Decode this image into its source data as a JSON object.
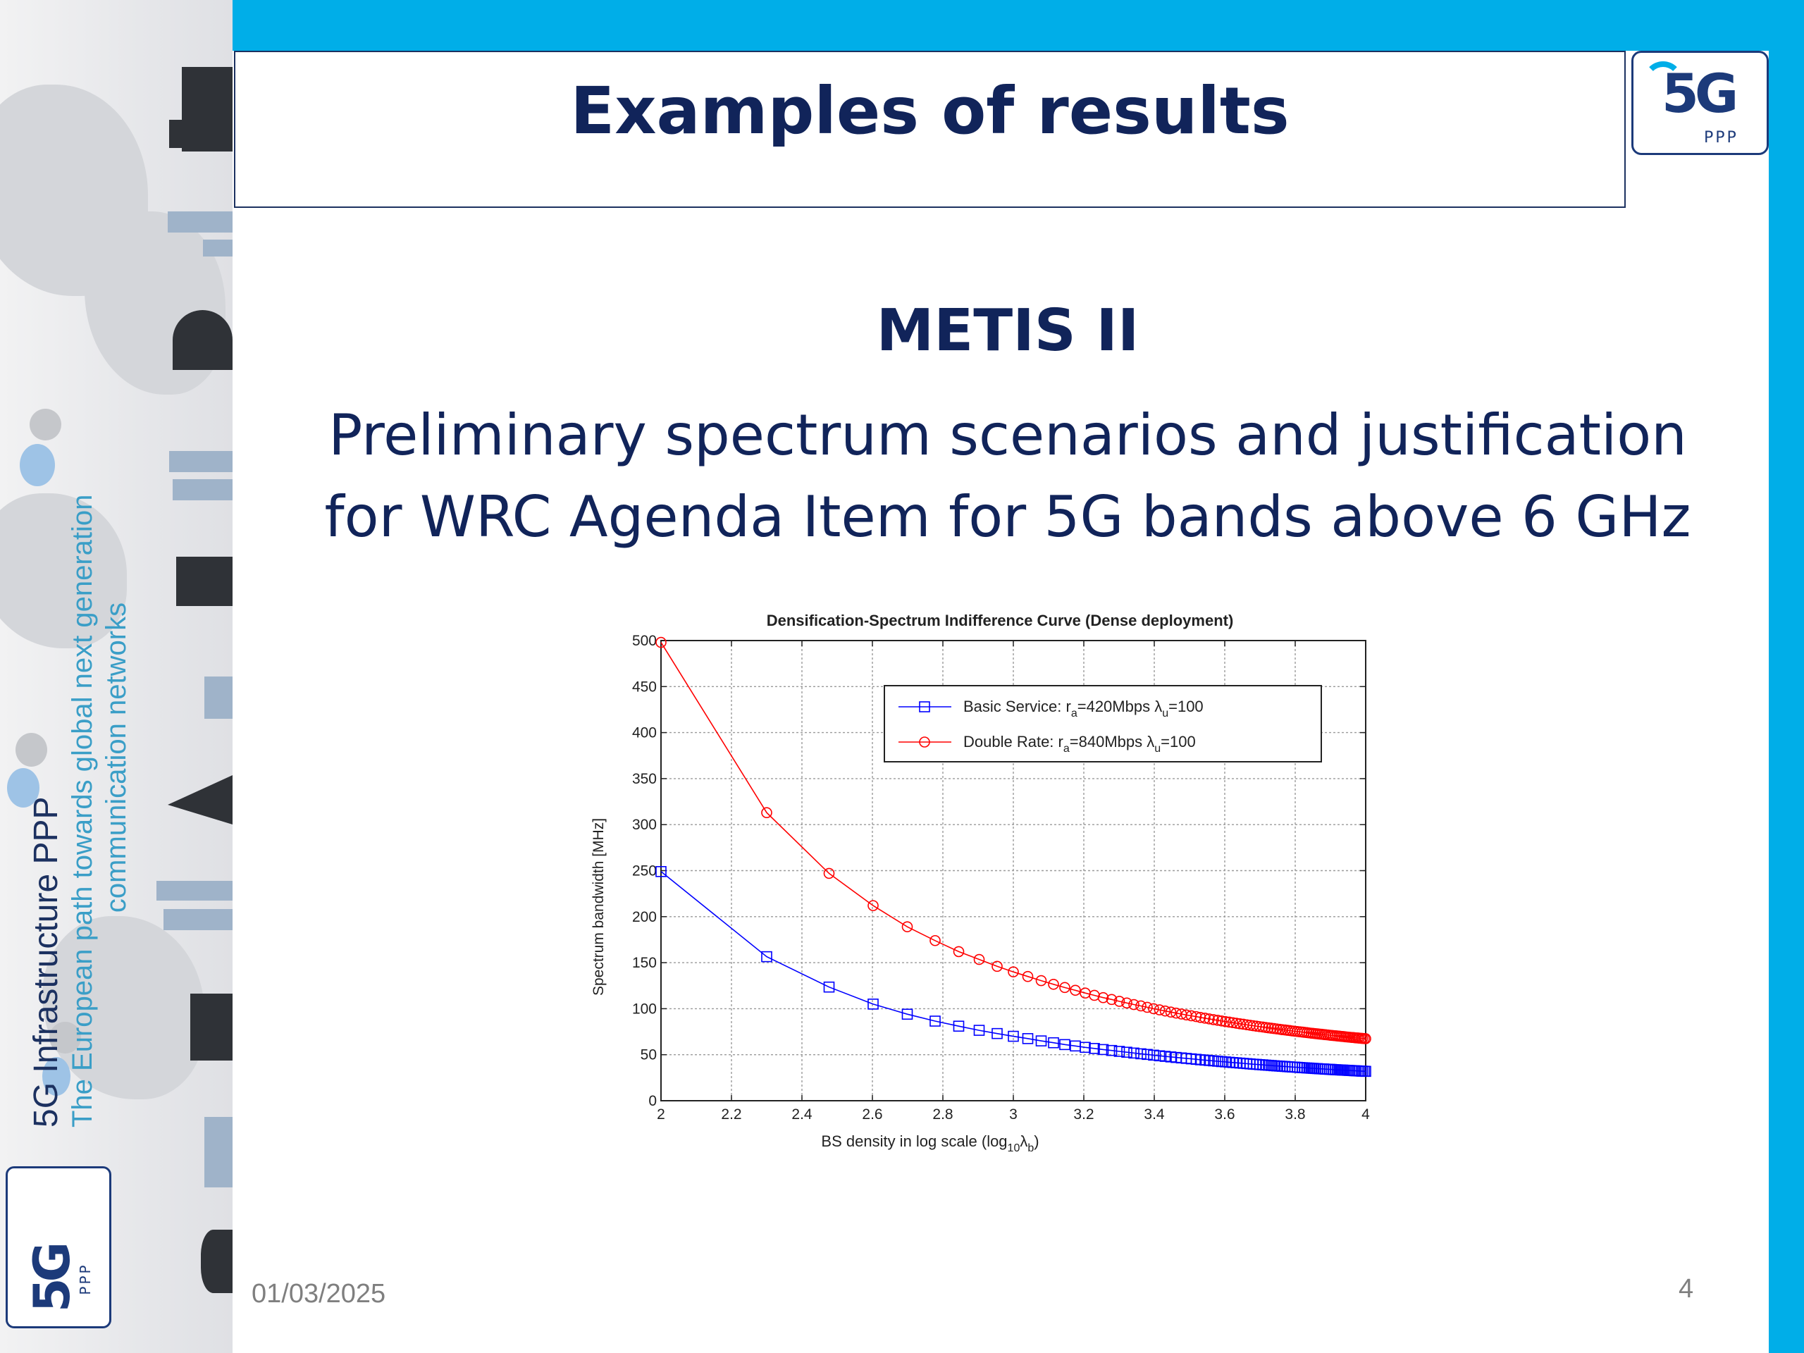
{
  "slide": {
    "title": "Examples of results",
    "subtitle": "METIS II",
    "description_line1": "Preliminary spectrum scenarios and justification",
    "description_line2": "for WRC Agenda Item  for 5G bands above 6 GHz",
    "date": "01/03/2025",
    "page_number": "4"
  },
  "sidebar": {
    "title": "5G Infrastructure PPP",
    "tagline_line1": "The European path towards global next generation",
    "tagline_line2": "communication networks"
  },
  "logo": {
    "mark": "5G",
    "suffix": "PPP"
  },
  "colors": {
    "accent": "#00aee8",
    "navy": "#11245a",
    "series_basic": "#0000ff",
    "series_double": "#ff0000"
  },
  "chart_data": {
    "type": "line",
    "title": "Densification-Spectrum Indifference Curve (Dense deployment)",
    "xlabel": "BS density in log scale (log",
    "xlabel_sub1": "10",
    "xlabel_mid": "λ",
    "xlabel_sub2": "b",
    "xlabel_end": ")",
    "ylabel": "Spectrum bandwidth [MHz]",
    "xlim": [
      2,
      4
    ],
    "ylim": [
      0,
      500
    ],
    "xticks": [
      "2",
      "2.2",
      "2.4",
      "2.6",
      "2.8",
      "3",
      "3.2",
      "3.4",
      "3.6",
      "3.8",
      "4"
    ],
    "yticks": [
      "0",
      "50",
      "100",
      "150",
      "200",
      "250",
      "300",
      "350",
      "400",
      "450",
      "500"
    ],
    "grid": true,
    "legend_position": "top-right",
    "x": [
      2.0,
      2.3,
      2.477,
      2.602,
      2.699,
      2.778,
      2.845,
      2.903,
      2.954,
      3.0,
      3.041,
      3.079,
      3.114,
      3.146,
      3.176,
      3.204,
      3.23,
      3.255,
      3.279,
      3.301,
      3.322,
      3.342,
      3.362,
      3.38,
      3.398,
      3.415,
      3.431,
      3.447,
      3.462,
      3.477,
      3.491,
      3.505,
      3.519,
      3.531,
      3.544,
      3.556,
      3.568,
      3.58,
      3.591,
      3.602,
      3.613,
      3.623,
      3.633,
      3.643,
      3.653,
      3.663,
      3.672,
      3.681,
      3.69,
      3.699,
      3.708,
      3.716,
      3.724,
      3.732,
      3.74,
      3.748,
      3.756,
      3.763,
      3.771,
      3.778,
      3.785,
      3.792,
      3.799,
      3.806,
      3.813,
      3.82,
      3.826,
      3.833,
      3.839,
      3.845,
      3.851,
      3.857,
      3.863,
      3.869,
      3.875,
      3.881,
      3.886,
      3.892,
      3.898,
      3.903,
      3.908,
      3.914,
      3.919,
      3.924,
      3.929,
      3.934,
      3.939,
      3.944,
      3.949,
      3.954,
      3.959,
      3.964,
      3.968,
      3.973,
      3.978,
      3.982,
      3.987,
      3.991,
      3.996,
      4.0
    ],
    "series": [
      {
        "name": "Basic Service: r",
        "name_sub": "a",
        "name_mid": "=420Mbps λ",
        "name_sub2": "u",
        "name_end": "=100",
        "marker": "square",
        "color": "#0000ff",
        "values": [
          249.0,
          156.5,
          123.5,
          105.0,
          94.0,
          86.5,
          81.0,
          76.5,
          73.0,
          70.0,
          67.5,
          65.0,
          63.0,
          61.0,
          59.5,
          58.0,
          56.8,
          55.6,
          54.6,
          53.6,
          52.7,
          51.8,
          51.0,
          50.3,
          49.5,
          48.8,
          48.2,
          47.6,
          47.0,
          46.5,
          46.0,
          45.5,
          45.0,
          44.5,
          44.1,
          43.7,
          43.3,
          42.9,
          42.5,
          42.2,
          41.8,
          41.5,
          41.2,
          40.9,
          40.6,
          40.3,
          40.0,
          39.7,
          39.5,
          39.2,
          39.0,
          38.7,
          38.5,
          38.3,
          38.0,
          37.8,
          37.6,
          37.4,
          37.2,
          37.0,
          36.8,
          36.6,
          36.5,
          36.3,
          36.1,
          35.9,
          35.8,
          35.6,
          35.5,
          35.3,
          35.2,
          35.0,
          34.9,
          34.7,
          34.6,
          34.5,
          34.3,
          34.2,
          34.1,
          34.0,
          33.8,
          33.7,
          33.6,
          33.5,
          33.4,
          33.3,
          33.2,
          33.1,
          33.0,
          32.9,
          32.8,
          32.7,
          32.6,
          32.5,
          32.4,
          32.3,
          32.2,
          32.1,
          32.0,
          31.9
        ]
      },
      {
        "name": "Double Rate: r",
        "name_sub": "a",
        "name_mid": "=840Mbps λ",
        "name_sub2": "u",
        "name_end": "=100",
        "marker": "circle",
        "color": "#ff0000",
        "values": [
          498.0,
          313.0,
          247.0,
          212.0,
          189.0,
          174.0,
          162.0,
          153.5,
          146.0,
          140.0,
          135.0,
          130.5,
          126.5,
          123.0,
          120.0,
          117.0,
          114.5,
          112.0,
          110.0,
          108.0,
          106.2,
          104.5,
          103.0,
          101.5,
          100.0,
          98.7,
          97.5,
          96.3,
          95.2,
          94.2,
          93.2,
          92.3,
          91.4,
          90.5,
          89.7,
          88.9,
          88.1,
          87.4,
          86.7,
          86.0,
          85.4,
          84.8,
          84.2,
          83.6,
          83.1,
          82.5,
          82.0,
          81.5,
          81.0,
          80.5,
          80.1,
          79.6,
          79.2,
          78.8,
          78.4,
          78.0,
          77.6,
          77.2,
          76.9,
          76.5,
          76.2,
          75.8,
          75.5,
          75.2,
          74.9,
          74.6,
          74.3,
          74.0,
          73.7,
          73.4,
          73.2,
          72.9,
          72.7,
          72.4,
          72.2,
          71.9,
          71.7,
          71.5,
          71.2,
          71.0,
          70.8,
          70.6,
          70.4,
          70.2,
          70.0,
          69.8,
          69.6,
          69.4,
          69.2,
          69.0,
          68.8,
          68.7,
          68.5,
          68.3,
          68.2,
          68.0,
          67.8,
          67.7,
          67.5,
          67.4
        ]
      }
    ]
  }
}
